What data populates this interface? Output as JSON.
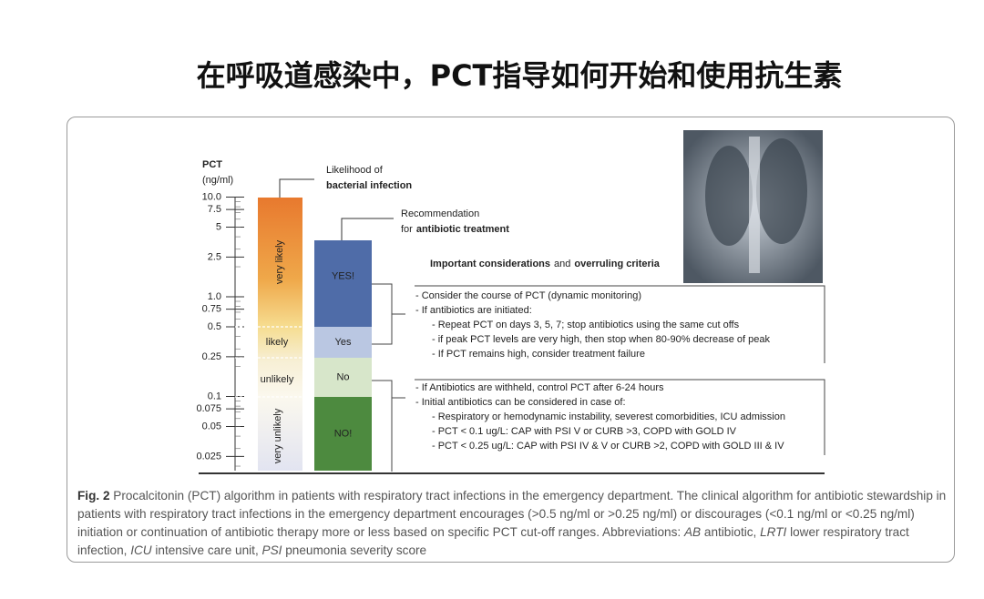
{
  "slide_title": "在呼吸道感染中，PCT指导如何开始和使用抗生素",
  "figure": {
    "axis": {
      "title": "PCT",
      "unit": "(ng/ml)",
      "ticks": [
        "10.0",
        "7.5",
        "5",
        "2.5",
        "1.0",
        "0.75",
        "0.5",
        "0.25",
        "0.1",
        "0.075",
        "0.05",
        "0.025"
      ]
    },
    "likelihood": {
      "heading": "Likelihood of",
      "heading_bold": "bacterial infection",
      "levels": [
        "very likely",
        "likely",
        "unlikely",
        "very unlikely"
      ]
    },
    "recommendation": {
      "heading": "Recommendation",
      "heading_prefix": "for",
      "heading_bold": "antibiotic treatment",
      "levels": [
        "YES!",
        "Yes",
        "No",
        "NO!"
      ]
    },
    "considerations": {
      "title_bold_1": "Important considerations",
      "title_mid": "and",
      "title_bold_2": "overruling criteria",
      "box1": [
        "- Consider the course of PCT (dynamic monitoring)",
        "- If antibiotics are initiated:",
        "- Repeat PCT on days 3, 5, 7; stop antibiotics using the same cut offs",
        "- if peak PCT levels are very high, then stop when 80-90% decrease of peak",
        "- If PCT remains high, consider treatment failure"
      ],
      "box2": [
        "- If Antibiotics are withheld, control PCT after 6-24 hours",
        "- Initial antibiotics can be considered in case of:",
        "- Respiratory or hemodynamic instability, severest comorbidities, ICU admission",
        "- PCT < 0.1 ug/L: CAP with PSI V or CURB >3, COPD with GOLD IV",
        "- PCT < 0.25 ug/L: CAP with PSI IV & V or CURB >2, COPD with GOLD III & IV"
      ]
    }
  },
  "caption": {
    "label": "Fig. 2",
    "segments": [
      " Procalcitonin (PCT) algorithm in patients with respiratory tract infections in the emergency department. The clinical algorithm for antibiotic stewardship in patients with respiratory tract infections in the emergency department encourages (>0.5 ng/ml or >0.25 ng/ml) or discourages (<0.1 ng/ml or <0.25 ng/ml) initiation or continuation of antibiotic therapy more or less based on specific PCT cut-off ranges. Abbreviations: ",
      "AB",
      " antibiotic, ",
      "LRTI",
      " lower respiratory tract infection, ",
      "ICU",
      " intensive care unit, ",
      "PSI",
      " pneumonia severity score"
    ]
  }
}
